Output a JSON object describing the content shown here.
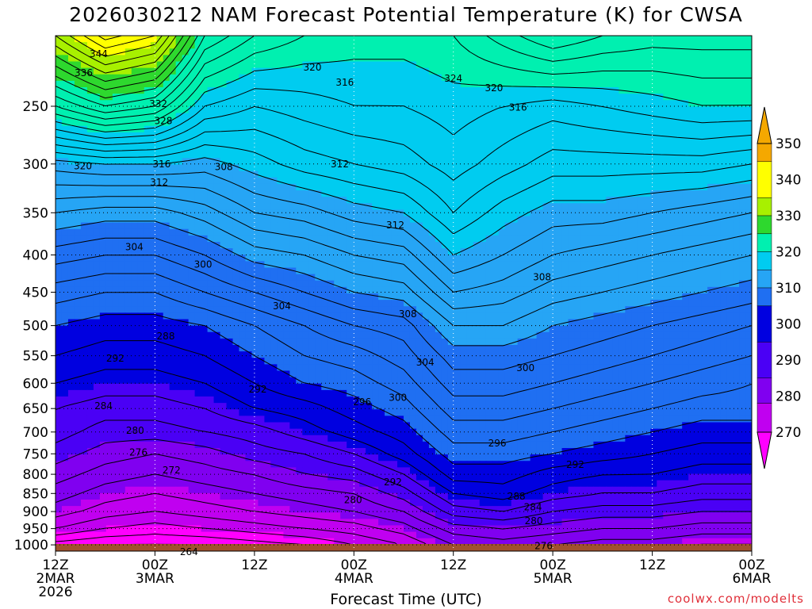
{
  "title": "2026030212 NAM Forecast Potential Temperature (K) for CWSA",
  "credit": "coolwx.com/modelts",
  "chart_data": {
    "type": "heatmap",
    "title": "2026030212 NAM Forecast Potential Temperature (K) for CWSA",
    "xlabel": "Forecast Time (UTC)",
    "ylabel": "",
    "x_ticks": [
      {
        "lines": [
          "12Z",
          "2MAR",
          "2026"
        ],
        "hour": 0
      },
      {
        "lines": [
          "00Z",
          "3MAR"
        ],
        "hour": 12
      },
      {
        "lines": [
          "12Z"
        ],
        "hour": 24
      },
      {
        "lines": [
          "00Z",
          "4MAR"
        ],
        "hour": 36
      },
      {
        "lines": [
          "12Z"
        ],
        "hour": 48
      },
      {
        "lines": [
          "00Z",
          "5MAR"
        ],
        "hour": 60
      },
      {
        "lines": [
          "12Z"
        ],
        "hour": 72
      },
      {
        "lines": [
          "00Z",
          "6MAR"
        ],
        "hour": 84
      }
    ],
    "xlim": [
      0,
      84
    ],
    "y_ticks": [
      250,
      300,
      350,
      400,
      450,
      500,
      550,
      600,
      650,
      700,
      750,
      800,
      850,
      900,
      950,
      1000
    ],
    "ylim": [
      1020,
      200
    ],
    "y_scale": "log",
    "colorbar": {
      "labels": [
        270,
        280,
        290,
        300,
        310,
        320,
        330,
        340,
        350
      ],
      "colors": [
        "#ff00ff",
        "#c000f0",
        "#8000f0",
        "#4a00f5",
        "#0000e0",
        "#1f6ff2",
        "#26a5f5",
        "#00ccf0",
        "#00f0b0",
        "#2ed82e",
        "#a8f000",
        "#ffff00",
        "#f5a800"
      ],
      "bounds": [
        262,
        270,
        275,
        280,
        285,
        290,
        300,
        310,
        320,
        330,
        335,
        340,
        350,
        360
      ]
    },
    "hours": [
      0,
      6,
      12,
      18,
      24,
      30,
      36,
      42,
      48,
      54,
      60,
      66,
      72,
      78,
      84
    ],
    "levels_hpa": [
      1020,
      1000,
      950,
      900,
      850,
      800,
      750,
      700,
      650,
      600,
      550,
      500,
      450,
      400,
      350,
      300,
      250,
      200
    ],
    "theta_k": [
      [
        264,
        264,
        264,
        264,
        264,
        266,
        269,
        272,
        275,
        276,
        275,
        274,
        273,
        272,
        272
      ],
      [
        267,
        266,
        266,
        266,
        267,
        268,
        270,
        272,
        276,
        277,
        276,
        275,
        275,
        274,
        274
      ],
      [
        272,
        270,
        269,
        270,
        271,
        272,
        273,
        275,
        279,
        280,
        279,
        278,
        278,
        277,
        277
      ],
      [
        275,
        273,
        272,
        273,
        274,
        275,
        276,
        278,
        283,
        284,
        282,
        281,
        281,
        280,
        280
      ],
      [
        277,
        275,
        274,
        275,
        276,
        277,
        278,
        281,
        286,
        287,
        285,
        284,
        284,
        283,
        283
      ],
      [
        279,
        277,
        276,
        277,
        278,
        280,
        281,
        284,
        289,
        289,
        287,
        286,
        286,
        285,
        285
      ],
      [
        281,
        279,
        278,
        279,
        281,
        282,
        284,
        287,
        291,
        291,
        290,
        289,
        288,
        287,
        287
      ],
      [
        283,
        281,
        281,
        282,
        283,
        285,
        287,
        289,
        293,
        293,
        292,
        291,
        290,
        289,
        289
      ],
      [
        284,
        283,
        283,
        284,
        286,
        287,
        289,
        291,
        295,
        295,
        294,
        293,
        292,
        291,
        291
      ],
      [
        286,
        285,
        285,
        286,
        288,
        290,
        291,
        293,
        297,
        297,
        296,
        295,
        294,
        293,
        292
      ],
      [
        288,
        287,
        287,
        288,
        290,
        292,
        293,
        295,
        299,
        299,
        298,
        297,
        296,
        295,
        294
      ],
      [
        290,
        289,
        289,
        290,
        292,
        294,
        296,
        297,
        302,
        302,
        300,
        299,
        298,
        297,
        296
      ],
      [
        293,
        292,
        292,
        294,
        296,
        298,
        300,
        301,
        306,
        305,
        303,
        302,
        301,
        300,
        299
      ],
      [
        297,
        296,
        296,
        298,
        301,
        302,
        304,
        305,
        310,
        308,
        306,
        305,
        304,
        303,
        302
      ],
      [
        302,
        301,
        301,
        303,
        306,
        307,
        309,
        310,
        314,
        311,
        309,
        309,
        308,
        307,
        306
      ],
      [
        309,
        310,
        310,
        309,
        311,
        313,
        314,
        315,
        317,
        315,
        313,
        313,
        313,
        313,
        312
      ],
      [
        324,
        328,
        326,
        318,
        316,
        317,
        318,
        318,
        319,
        318,
        317,
        318,
        319,
        320,
        320
      ],
      [
        338,
        345,
        342,
        328,
        324,
        322,
        321,
        321,
        322,
        325,
        328,
        326,
        325,
        325,
        325
      ]
    ],
    "contour_labels": [
      {
        "text": "344",
        "hour": 5.2,
        "p": 212
      },
      {
        "text": "336",
        "hour": 3.4,
        "p": 225
      },
      {
        "text": "332",
        "hour": 12.4,
        "p": 248
      },
      {
        "text": "328",
        "hour": 13.0,
        "p": 262
      },
      {
        "text": "320",
        "hour": 3.3,
        "p": 302
      },
      {
        "text": "316",
        "hour": 12.8,
        "p": 300
      },
      {
        "text": "312",
        "hour": 12.5,
        "p": 318
      },
      {
        "text": "308",
        "hour": 20.3,
        "p": 303
      },
      {
        "text": "320",
        "hour": 31.0,
        "p": 221
      },
      {
        "text": "316",
        "hour": 34.9,
        "p": 232
      },
      {
        "text": "312",
        "hour": 34.3,
        "p": 300
      },
      {
        "text": "312",
        "hour": 41.0,
        "p": 364
      },
      {
        "text": "324",
        "hour": 48.0,
        "p": 229
      },
      {
        "text": "320",
        "hour": 52.9,
        "p": 236
      },
      {
        "text": "316",
        "hour": 55.8,
        "p": 251
      },
      {
        "text": "304",
        "hour": 9.5,
        "p": 390
      },
      {
        "text": "300",
        "hour": 17.8,
        "p": 412
      },
      {
        "text": "304",
        "hour": 27.3,
        "p": 470
      },
      {
        "text": "308",
        "hour": 42.5,
        "p": 482
      },
      {
        "text": "308",
        "hour": 58.7,
        "p": 429
      },
      {
        "text": "304",
        "hour": 44.6,
        "p": 562
      },
      {
        "text": "300",
        "hour": 56.7,
        "p": 572
      },
      {
        "text": "292",
        "hour": 7.2,
        "p": 555
      },
      {
        "text": "288",
        "hour": 13.3,
        "p": 517
      },
      {
        "text": "292",
        "hour": 24.4,
        "p": 612
      },
      {
        "text": "296",
        "hour": 37.0,
        "p": 637
      },
      {
        "text": "300",
        "hour": 41.3,
        "p": 628
      },
      {
        "text": "284",
        "hour": 5.8,
        "p": 645
      },
      {
        "text": "280",
        "hour": 9.6,
        "p": 697
      },
      {
        "text": "276",
        "hour": 10.0,
        "p": 747
      },
      {
        "text": "272",
        "hour": 14.0,
        "p": 790
      },
      {
        "text": "296",
        "hour": 53.3,
        "p": 725
      },
      {
        "text": "292",
        "hour": 40.7,
        "p": 820
      },
      {
        "text": "292",
        "hour": 62.7,
        "p": 776
      },
      {
        "text": "288",
        "hour": 55.6,
        "p": 858
      },
      {
        "text": "284",
        "hour": 57.6,
        "p": 888
      },
      {
        "text": "280",
        "hour": 57.7,
        "p": 927
      },
      {
        "text": "280",
        "hour": 35.9,
        "p": 868
      },
      {
        "text": "276",
        "hour": 58.9,
        "p": 1004
      },
      {
        "text": "264",
        "hour": 16.1,
        "p": 1023
      }
    ]
  }
}
